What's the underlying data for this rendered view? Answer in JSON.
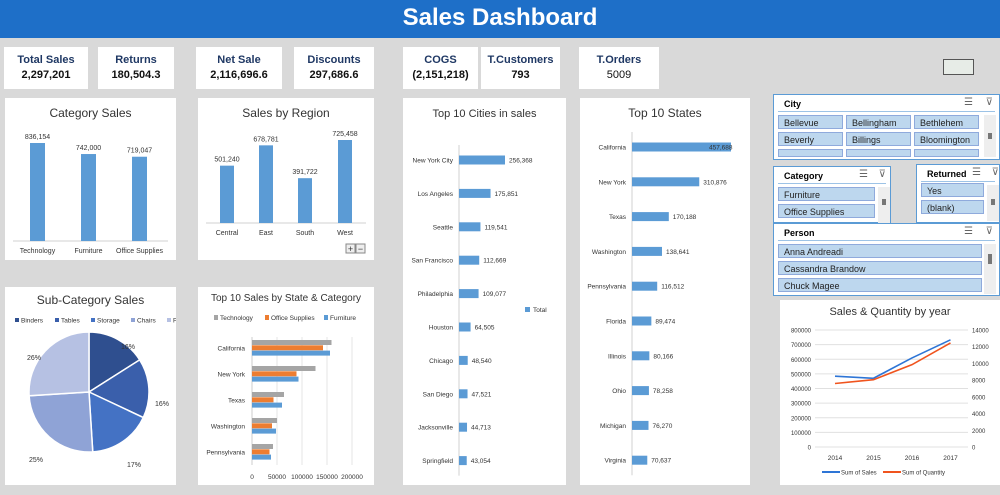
{
  "title": "Sales Dashboard",
  "kpis": [
    {
      "label": "Total Sales",
      "value": "2,297,201"
    },
    {
      "label": "Returns",
      "value": "180,504.3"
    },
    {
      "label": "Net Sale",
      "value": "2,116,696.6"
    },
    {
      "label": "Discounts",
      "value": "297,686.6"
    },
    {
      "label": "COGS",
      "value": "(2,151,218)"
    },
    {
      "label": "T.Customers",
      "value": "793"
    },
    {
      "label": "T.Orders",
      "value": "5009"
    }
  ],
  "slicers": {
    "city": {
      "title": "City",
      "items": [
        "Bellevue",
        "Bellingham",
        "Bethlehem",
        "Beverly",
        "Billings",
        "Bloomington"
      ]
    },
    "category": {
      "title": "Category",
      "items": [
        "Furniture",
        "Office Supplies"
      ]
    },
    "returned": {
      "title": "Returned",
      "items": [
        "Yes",
        "(blank)"
      ]
    },
    "person": {
      "title": "Person",
      "items": [
        "Anna Andreadi",
        "Cassandra Brandow",
        "Chuck Magee"
      ]
    }
  },
  "chart_data": [
    {
      "id": "category",
      "type": "bar",
      "title": "Category Sales",
      "categories": [
        "Technology",
        "Furniture",
        "Office Supplies"
      ],
      "values": [
        836154,
        742000,
        719047
      ],
      "labels": [
        "836,154",
        "742,000",
        "719,047"
      ]
    },
    {
      "id": "region",
      "type": "bar",
      "title": "Sales by Region",
      "categories": [
        "Central",
        "East",
        "South",
        "West"
      ],
      "values": [
        501240,
        678781,
        391722,
        725458
      ],
      "labels": [
        "501,240",
        "678,781",
        "391,722",
        "725,458"
      ],
      "buttons": [
        "+",
        "−"
      ]
    },
    {
      "id": "cities",
      "type": "bar",
      "orientation": "horizontal",
      "title": "Top 10 Cities in sales",
      "legend": "Total",
      "categories": [
        "New York City",
        "Los Angeles",
        "Seattle",
        "San Francisco",
        "Philadelphia",
        "Houston",
        "Chicago",
        "San Diego",
        "Jacksonville",
        "Springfield"
      ],
      "values": [
        256368,
        175851,
        119541,
        112669,
        109077,
        64505,
        48540,
        47521,
        44713,
        43054
      ],
      "labels": [
        "256,368",
        "175,851",
        "119,541",
        "112,669",
        "109,077",
        "64,505",
        "48,540",
        "47,521",
        "44,713",
        "43,054"
      ]
    },
    {
      "id": "states",
      "type": "bar",
      "orientation": "horizontal",
      "title": "Top 10 States",
      "categories": [
        "California",
        "New York",
        "Texas",
        "Washington",
        "Pennsylvania",
        "Florida",
        "Illinois",
        "Ohio",
        "Michigan",
        "Virginia"
      ],
      "values": [
        457688,
        310876,
        170188,
        138641,
        116512,
        89474,
        80166,
        78258,
        76270,
        70637
      ],
      "labels": [
        "457,688",
        "310,876",
        "170,188",
        "138,641",
        "116,512",
        "89,474",
        "80,166",
        "78,258",
        "76,270",
        "70,637"
      ]
    },
    {
      "id": "subcat",
      "type": "pie",
      "title": "Sub-Category Sales",
      "categories": [
        "Binders",
        "Tables",
        "Storage",
        "Chairs",
        "Phones"
      ],
      "values": [
        16,
        16,
        17,
        25,
        26
      ],
      "labels": [
        "16%",
        "16%",
        "17%",
        "25%",
        "26%"
      ],
      "colors": [
        "#2f4f8f",
        "#3a5fab",
        "#4472c4",
        "#8fa3d6",
        "#b6c1e3"
      ]
    },
    {
      "id": "statecat",
      "type": "bar",
      "orientation": "horizontal",
      "title": "Top 10 Sales by State & Category",
      "categories": [
        "California",
        "New York",
        "Texas",
        "Washington",
        "Pennsylvania"
      ],
      "series": [
        {
          "name": "Technology",
          "color": "#a5a5a5",
          "values": [
            159000,
            127000,
            64000,
            50000,
            42000
          ]
        },
        {
          "name": "Office Supplies",
          "color": "#ed7d31",
          "values": [
            142000,
            89000,
            43000,
            40000,
            35000
          ]
        },
        {
          "name": "Furniture",
          "color": "#5b9bd5",
          "values": [
            156000,
            93000,
            60000,
            48000,
            38000
          ]
        }
      ],
      "xlim": [
        0,
        200000
      ],
      "xticks": [
        "0",
        "50000",
        "100000",
        "150000",
        "200000"
      ]
    },
    {
      "id": "yearly",
      "type": "line",
      "title": "Sales & Quantity by year",
      "x": [
        "2014",
        "2015",
        "2016",
        "2017"
      ],
      "series": [
        {
          "name": "Sum of Sales",
          "axis": "left",
          "color": "#2e75d6",
          "values": [
            484000,
            470000,
            609000,
            733000
          ]
        },
        {
          "name": "Sum of Quantity",
          "axis": "right",
          "color": "#f0541e",
          "values": [
            7600,
            8050,
            9850,
            12450
          ]
        }
      ],
      "ylim": [
        0,
        800000
      ],
      "y2lim": [
        0,
        14000
      ],
      "yticks": [
        "800000",
        "700000",
        "600000",
        "500000",
        "400000",
        "300000",
        "200000",
        "100000",
        "0"
      ],
      "y2ticks": [
        "14000",
        "12000",
        "10000",
        "8000",
        "6000",
        "4000",
        "2000",
        "0"
      ]
    }
  ]
}
